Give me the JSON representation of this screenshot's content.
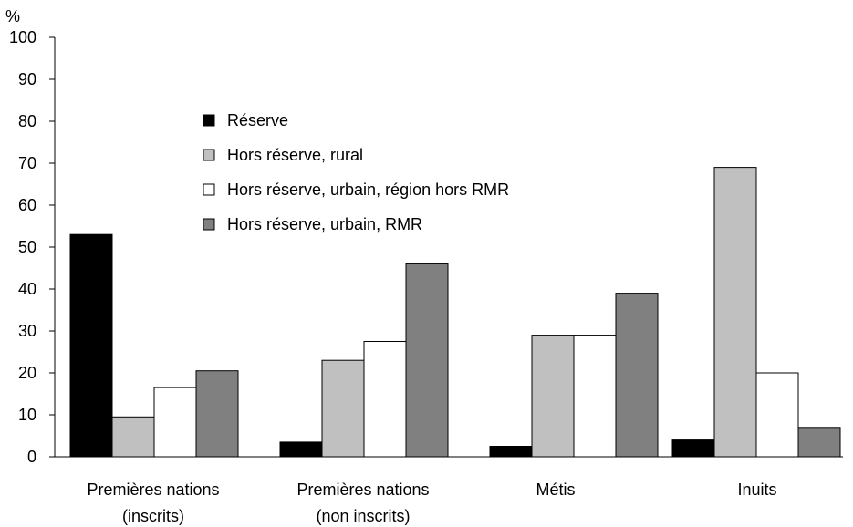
{
  "chart_data": {
    "type": "bar",
    "y_unit": "%",
    "categories": [
      [
        "Premières nations",
        "(inscrits)"
      ],
      [
        "Premières nations",
        "(non inscrits)"
      ],
      [
        "Métis"
      ],
      [
        "Inuits"
      ]
    ],
    "series": [
      {
        "name": "Réserve",
        "color": "#000000",
        "values": [
          53,
          3.5,
          2.5,
          4
        ]
      },
      {
        "name": "Hors réserve, rural",
        "color": "#c0c0c0",
        "values": [
          9.5,
          23,
          29,
          69
        ]
      },
      {
        "name": "Hors réserve, urbain, région hors RMR",
        "color": "#ffffff",
        "values": [
          16.5,
          27.5,
          29,
          20
        ]
      },
      {
        "name": "Hors réserve, urbain, RMR",
        "color": "#808080",
        "values": [
          20.5,
          46,
          39,
          7
        ]
      }
    ],
    "ylim": [
      0,
      100
    ],
    "yticks": [
      0,
      10,
      20,
      30,
      40,
      50,
      60,
      70,
      80,
      90,
      100
    ],
    "legend_position": "upper-middle",
    "grid": false
  }
}
